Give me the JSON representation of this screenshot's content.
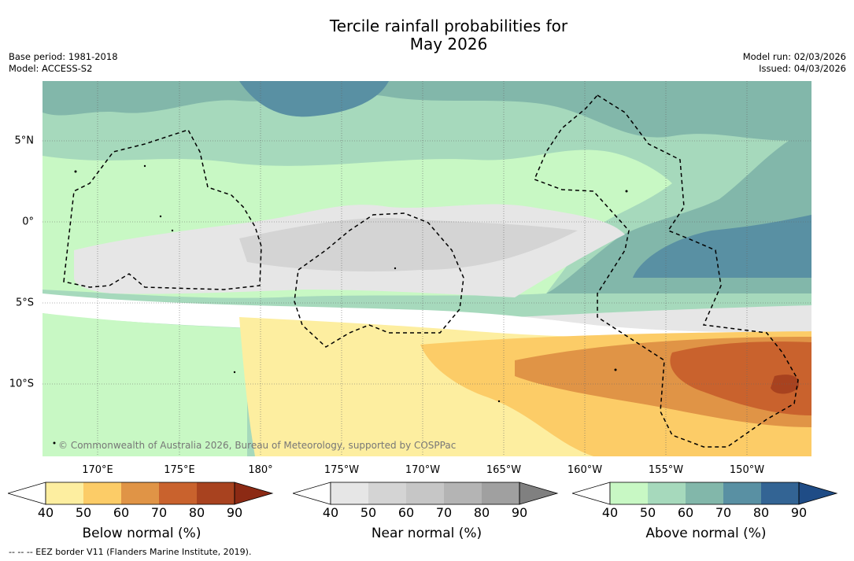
{
  "title_line1": "Tercile rainfall probabilities for",
  "title_line2": "May 2026",
  "meta_left": {
    "base_period": "Base period: 1981-2018",
    "model": "Model: ACCESS-S2"
  },
  "meta_right": {
    "model_run": "Model run: 02/03/2026",
    "issued": "Issued: 04/03/2026"
  },
  "lat_labels": [
    "5°N",
    "0°",
    "5°S",
    "10°S"
  ],
  "lon_labels": [
    "170°E",
    "175°E",
    "180°",
    "175°W",
    "170°W",
    "165°W",
    "160°W",
    "155°W",
    "150°W"
  ],
  "copyright": "© Commonwealth of Australia 2026, Bureau of Meteorology, supported by COSPPac",
  "colorbars": [
    {
      "name": "below",
      "label": "Below normal (%)",
      "ticks": [
        "40",
        "50",
        "60",
        "70",
        "80",
        "90"
      ],
      "colors": [
        "#ffffff",
        "#fdeea0",
        "#fccc67",
        "#e09446",
        "#c9622d",
        "#a8421f",
        "#8c2a14"
      ]
    },
    {
      "name": "near",
      "label": "Near normal (%)",
      "ticks": [
        "40",
        "50",
        "60",
        "70",
        "80",
        "90"
      ],
      "colors": [
        "#ffffff",
        "#e6e6e6",
        "#d4d4d4",
        "#c6c6c6",
        "#b4b4b4",
        "#a0a0a0",
        "#808080"
      ]
    },
    {
      "name": "above",
      "label": "Above normal (%)",
      "ticks": [
        "40",
        "50",
        "60",
        "70",
        "80",
        "90"
      ],
      "colors": [
        "#ffffff",
        "#c8f8c4",
        "#a6d9bc",
        "#82b7aa",
        "#5990a3",
        "#336494",
        "#1f4c86"
      ]
    }
  ],
  "footnote": "--  --  -- EEZ border V11 (Flanders Marine Institute, 2019)."
}
